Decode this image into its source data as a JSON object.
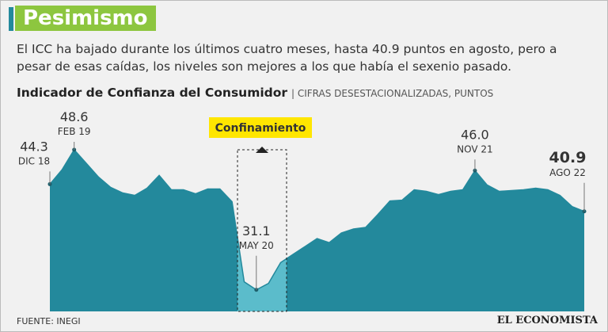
{
  "header": {
    "title": "Pesimismo",
    "text": "El ICC ha bajado durante los últimos cuatro meses, hasta 40.9 puntos en agosto, pero a pesar de esas caídas, los niveles son mejores a los que había el sexenio pasado."
  },
  "chart_data": {
    "type": "area",
    "title": "Indicador de Confianza del Consumidor",
    "subtitle": "| CIFRAS DESESTACIONALIZADAS, PUNTOS",
    "annotation": "Confinamiento",
    "categories": [
      "DIC 18",
      null,
      "FEB 19",
      null,
      null,
      null,
      null,
      null,
      null,
      null,
      null,
      null,
      null,
      null,
      null,
      null,
      null,
      "MAY 20",
      null,
      null,
      null,
      null,
      null,
      null,
      null,
      null,
      null,
      null,
      null,
      null,
      null,
      null,
      null,
      null,
      null,
      "NOV 21",
      null,
      null,
      null,
      null,
      null,
      null,
      null,
      null,
      "AGO 22"
    ],
    "values": [
      44.3,
      46.1,
      48.6,
      46.9,
      45.2,
      43.9,
      43.2,
      42.9,
      43.8,
      45.4,
      43.6,
      43.6,
      43.1,
      43.7,
      43.7,
      42.1,
      32.1,
      31.1,
      31.9,
      34.5,
      35.5,
      36.5,
      37.5,
      37.0,
      38.2,
      38.7,
      38.9,
      40.5,
      42.2,
      42.3,
      43.6,
      43.4,
      43.0,
      43.4,
      43.6,
      46.0,
      44.2,
      43.4,
      43.5,
      43.6,
      43.8,
      43.6,
      42.9,
      41.5,
      40.9
    ],
    "value_labels": [
      "44.3",
      null,
      "48.6",
      null,
      null,
      null,
      null,
      null,
      null,
      null,
      null,
      null,
      null,
      null,
      null,
      null,
      null,
      "31.1",
      null,
      null,
      null,
      null,
      null,
      null,
      null,
      null,
      null,
      null,
      null,
      null,
      null,
      null,
      null,
      null,
      null,
      "46.0",
      null,
      null,
      null,
      null,
      null,
      null,
      null,
      null,
      "40.9"
    ],
    "color": "#23899c",
    "highlight_color": "#5bbccb"
  },
  "footer": {
    "source": "FUENTE: INEGI",
    "brand": "EL ECONOMISTA"
  }
}
